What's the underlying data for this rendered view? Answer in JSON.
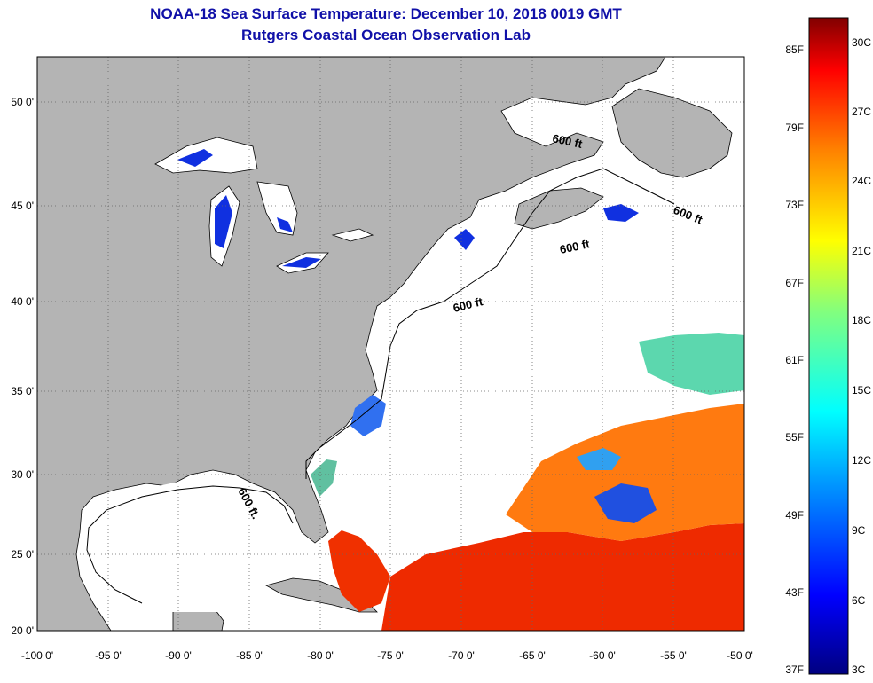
{
  "title": {
    "line1": "NOAA-18 Sea Surface Temperature:  December 10, 2018 0019 GMT",
    "line2": "Rutgers Coastal Ocean Observation Lab"
  },
  "map": {
    "lon_labels": [
      "-100 0'",
      "-95 0'",
      "-90 0'",
      "-85 0'",
      "-80 0'",
      "-75 0'",
      "-70 0'",
      "-65 0'",
      "-60 0'",
      "-55 0'",
      "-50 0'"
    ],
    "lat_labels": [
      "50 0'",
      "45 0'",
      "40 0'",
      "35 0'",
      "30 0'",
      "25 0'",
      "20 0'"
    ],
    "lon_range": [
      -100,
      -50
    ],
    "lat_range": [
      20,
      52
    ],
    "land_color": "#b4b4b4",
    "ocean_color": "#ffffff",
    "contour_labels": [
      "600 ft",
      "600 ft",
      "600 ft",
      "600 ft.",
      "600 ft"
    ]
  },
  "colorbar": {
    "f_labels": [
      "85F",
      "79F",
      "73F",
      "67F",
      "61F",
      "55F",
      "49F",
      "43F",
      "37F"
    ],
    "c_labels": [
      "30C",
      "27C",
      "24C",
      "21C",
      "18C",
      "15C",
      "12C",
      "9C",
      "6C",
      "3C"
    ],
    "colors": [
      "#000080",
      "#0000ff",
      "#00a0ff",
      "#00ffff",
      "#80ff80",
      "#ffff00",
      "#ff8000",
      "#ff0000",
      "#800000"
    ]
  }
}
